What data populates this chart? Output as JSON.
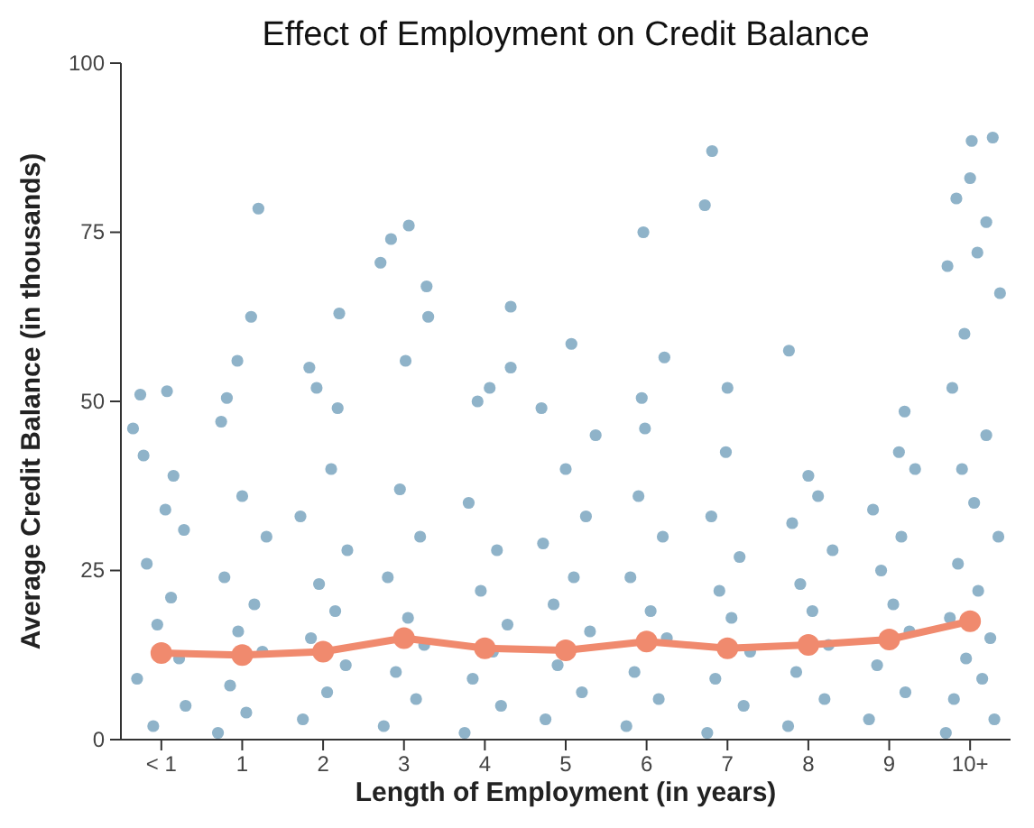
{
  "chart_data": {
    "type": "scatter",
    "title": "Effect of Employment on Credit Balance",
    "xlabel": "Length of Employment (in years)",
    "ylabel": "Average Credit Balance (in thousands)",
    "xlim": [
      -0.5,
      10.5
    ],
    "xticks": [
      {
        "value": 0,
        "label": "< 1"
      },
      {
        "value": 1,
        "label": "1"
      },
      {
        "value": 2,
        "label": "2"
      },
      {
        "value": 3,
        "label": "3"
      },
      {
        "value": 4,
        "label": "4"
      },
      {
        "value": 5,
        "label": "5"
      },
      {
        "value": 6,
        "label": "6"
      },
      {
        "value": 7,
        "label": "7"
      },
      {
        "value": 8,
        "label": "8"
      },
      {
        "value": 9,
        "label": "9"
      },
      {
        "value": 10,
        "label": "10+"
      }
    ],
    "ylim": [
      0,
      100
    ],
    "yticks": [
      0,
      25,
      50,
      75,
      100
    ],
    "grid": false,
    "marker": "circle",
    "series": [
      {
        "color": "#8fb3c9",
        "x": [
          -0.35,
          -0.26,
          0.07,
          -0.22,
          0.15,
          -0.1,
          0.3,
          -0.3,
          0.22,
          -0.05,
          0.12,
          -0.18,
          0.28,
          0.05,
          1.2,
          1.11,
          0.94,
          0.81,
          0.74,
          0.7,
          1.05,
          0.85,
          1.25,
          0.95,
          1.15,
          0.78,
          1.3,
          1.0,
          2.2,
          1.83,
          1.92,
          2.18,
          1.75,
          2.05,
          2.28,
          1.85,
          2.15,
          1.95,
          2.3,
          1.72,
          2.1,
          2.71,
          2.84,
          3.06,
          3.28,
          3.3,
          3.02,
          2.75,
          3.15,
          2.9,
          3.25,
          3.05,
          2.8,
          3.2,
          2.95,
          4.32,
          4.32,
          4.06,
          3.91,
          3.75,
          4.2,
          3.85,
          4.1,
          4.28,
          3.95,
          4.15,
          3.8,
          5.07,
          4.7,
          5.37,
          4.75,
          5.2,
          4.9,
          5.3,
          4.85,
          5.1,
          4.72,
          5.25,
          5.0,
          5.96,
          6.22,
          5.94,
          5.98,
          5.75,
          6.15,
          5.85,
          6.25,
          6.05,
          5.8,
          6.2,
          5.9,
          6.81,
          6.72,
          7.0,
          6.98,
          6.75,
          7.2,
          6.85,
          7.28,
          7.05,
          6.9,
          7.15,
          6.8,
          7.76,
          8.0,
          8.12,
          7.75,
          8.2,
          7.85,
          8.25,
          8.05,
          7.9,
          8.3,
          7.8,
          9.19,
          9.12,
          9.32,
          8.75,
          9.2,
          8.85,
          9.25,
          9.05,
          8.9,
          9.15,
          8.8,
          10.28,
          10.02,
          9.83,
          10.0,
          10.2,
          10.09,
          9.72,
          10.37,
          9.93,
          9.7,
          10.3,
          9.8,
          10.15,
          9.95,
          10.25,
          9.75,
          10.1,
          9.85,
          10.35,
          10.05,
          9.9,
          10.2,
          9.78
        ],
        "values": [
          46,
          51,
          51.5,
          42,
          39,
          2,
          5,
          9,
          12,
          17,
          21,
          26,
          31,
          34,
          78.5,
          62.5,
          56,
          50.5,
          47,
          1,
          4,
          8,
          13,
          16,
          20,
          24,
          30,
          36,
          63,
          55,
          52,
          49,
          3,
          7,
          11,
          15,
          19,
          23,
          28,
          33,
          40,
          70.5,
          74,
          76,
          67,
          62.5,
          56,
          2,
          6,
          10,
          14,
          18,
          24,
          30,
          37,
          64,
          55,
          52,
          50,
          1,
          5,
          9,
          13,
          17,
          22,
          28,
          35,
          58.5,
          49,
          45,
          3,
          7,
          11,
          16,
          20,
          24,
          29,
          33,
          40,
          75,
          56.5,
          50.5,
          46,
          2,
          6,
          10,
          15,
          19,
          24,
          30,
          36,
          87,
          79,
          52,
          42.5,
          1,
          5,
          9,
          13,
          18,
          22,
          27,
          33,
          57.5,
          39,
          36,
          2,
          6,
          10,
          14,
          19,
          23,
          28,
          32,
          48.5,
          42.5,
          40,
          3,
          7,
          11,
          16,
          20,
          25,
          30,
          34,
          89,
          88.5,
          80,
          83,
          76.5,
          72,
          70,
          66,
          60,
          1,
          3,
          6,
          9,
          12,
          15,
          18,
          22,
          26,
          30,
          35,
          40,
          45,
          52
        ]
      },
      {
        "type": "line",
        "color": "#f08a6e",
        "x": [
          0,
          1,
          2,
          3,
          4,
          5,
          6,
          7,
          8,
          9,
          10
        ],
        "values": [
          12.8,
          12.5,
          13,
          15,
          13.5,
          13.2,
          14.5,
          13.5,
          14,
          14.8,
          17.5
        ]
      }
    ]
  }
}
